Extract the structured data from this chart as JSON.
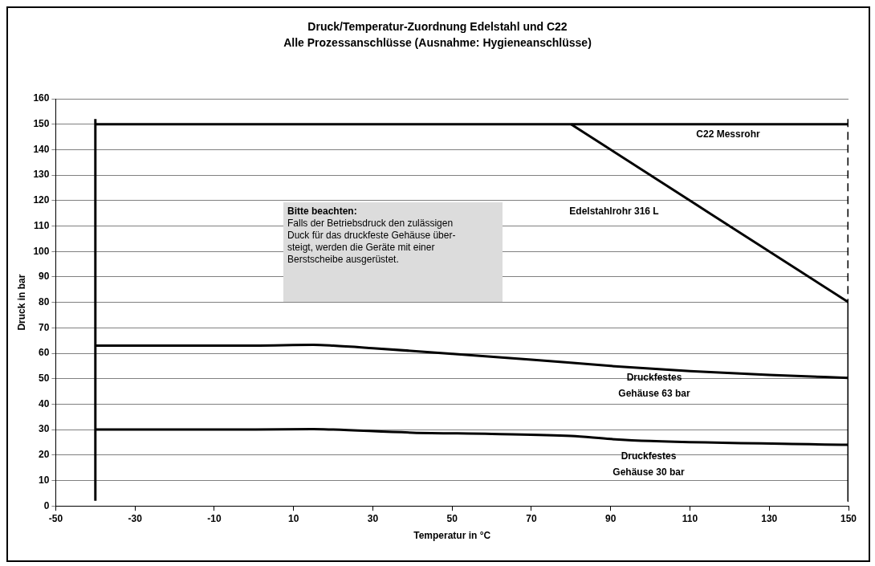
{
  "chart_data": {
    "type": "line",
    "title": "Druck/Temperatur-Zuordnung  Edelstahl und C22",
    "subtitle": "Alle Prozessanschlüsse (Ausnahme: Hygieneanschlüsse)",
    "xlabel": "Temperatur in °C",
    "ylabel": "Druck in bar",
    "xlim": [
      -50,
      150
    ],
    "xticks": [
      -50,
      -30,
      -10,
      10,
      30,
      50,
      70,
      90,
      110,
      130,
      150
    ],
    "ylim": [
      0,
      160
    ],
    "yticks": [
      0,
      10,
      20,
      30,
      40,
      50,
      60,
      70,
      80,
      90,
      100,
      110,
      120,
      130,
      140,
      150,
      160
    ],
    "grid": "y",
    "marker": "none",
    "line_style": "solid",
    "series": [
      {
        "color": "#000000",
        "x": [
          -40,
          150
        ],
        "values": [
          150,
          150
        ]
      },
      {
        "color": "#000000",
        "x": [
          80,
          150
        ],
        "values": [
          150,
          80
        ]
      },
      {
        "color": "#000000",
        "x": [
          -40,
          0,
          15,
          20,
          30,
          50,
          70,
          90,
          110,
          130,
          150
        ],
        "values": [
          63,
          63,
          63.3,
          63,
          62,
          59.8,
          57.5,
          55,
          53,
          51.5,
          50.3
        ]
      },
      {
        "color": "#000000",
        "x": [
          -40,
          0,
          15,
          20,
          40,
          60,
          80,
          90,
          100,
          150
        ],
        "values": [
          30,
          30,
          30.2,
          30,
          28.8,
          28.3,
          27.5,
          26.3,
          25.5,
          24
        ]
      },
      {
        "color": "#000000",
        "x": [
          -40,
          -40
        ],
        "values": [
          2,
          152
        ]
      },
      {
        "color": "#000000",
        "x": [
          150,
          150
        ],
        "values": [
          152,
          80
        ],
        "line_style": "dashed"
      },
      {
        "color": "#000000",
        "x": [
          150,
          150
        ],
        "values": [
          80,
          2
        ]
      }
    ],
    "annotations": [
      "C22 Messrohr",
      "Edelstahlrohr 316 L",
      "Druckfestes\nGehäuse 63 bar",
      "Druckfestes\nGehäuse 30 bar",
      "Bitte beachten:\nFalls der Betriebsdruck den zulässigen\nDuck für das druckfeste Gehäuse über-\nsteigt,  werden die Geräte mit einer\nBerstscheibe ausgerüstet."
    ]
  }
}
